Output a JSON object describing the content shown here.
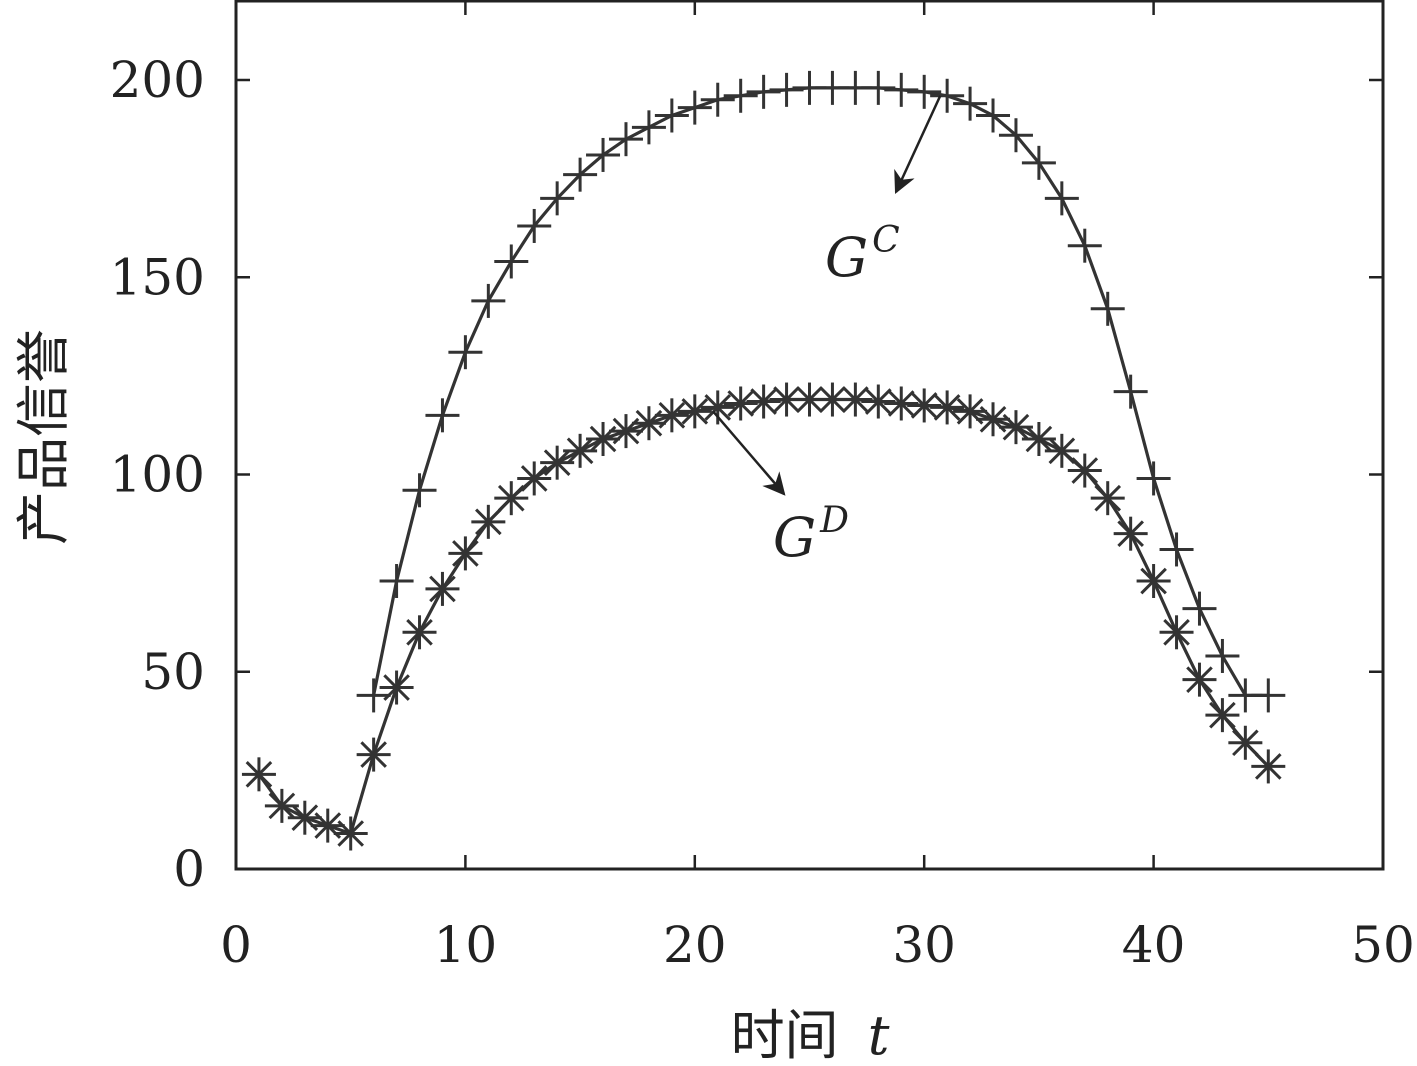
{
  "chart_data": {
    "type": "line",
    "xlabel": "时间",
    "xlabel_var": "t",
    "ylabel": "产品信誉",
    "xlim": [
      0,
      50
    ],
    "ylim": [
      0,
      200
    ],
    "x_ticks": [
      "0",
      "10",
      "20",
      "30",
      "40",
      "50"
    ],
    "y_ticks": [
      "0",
      "50",
      "100",
      "150",
      "200"
    ],
    "grid": false,
    "series": [
      {
        "name": "G^C",
        "marker": "plus",
        "color": "#333333",
        "x": [
          6,
          7,
          8,
          9,
          10,
          11,
          12,
          13,
          14,
          15,
          16,
          17,
          18,
          19,
          20,
          21,
          22,
          23,
          24,
          25,
          26,
          27,
          28,
          29,
          30,
          31,
          32,
          33,
          34,
          35,
          36,
          37,
          38,
          39,
          40,
          41,
          42,
          43,
          44,
          45
        ],
        "y": [
          44,
          73,
          96,
          115,
          131,
          144,
          154,
          163,
          170,
          176,
          181,
          185,
          188,
          191,
          193,
          195,
          196,
          197,
          197.5,
          198,
          198,
          198,
          198,
          197.5,
          197,
          196,
          194,
          191,
          186,
          179,
          170,
          158,
          142,
          121,
          99,
          81,
          66,
          54,
          44,
          44
        ]
      },
      {
        "name": "G^D",
        "marker": "asterisk",
        "color": "#333333",
        "x": [
          1,
          2,
          3,
          4,
          5,
          6,
          7,
          8,
          9,
          10,
          11,
          12,
          13,
          14,
          15,
          16,
          17,
          18,
          19,
          20,
          21,
          22,
          23,
          24,
          25,
          26,
          27,
          28,
          29,
          30,
          31,
          32,
          33,
          34,
          35,
          36,
          37,
          38,
          39,
          40,
          41,
          42,
          43,
          44,
          45
        ],
        "y": [
          24,
          16,
          13,
          11,
          9,
          29,
          46,
          60,
          71,
          80,
          88,
          94,
          99,
          103,
          106,
          109,
          111,
          113,
          115,
          116,
          117,
          118,
          118.5,
          119,
          119,
          119,
          119,
          118.5,
          118,
          117.5,
          117,
          116,
          114,
          112,
          109,
          106,
          101,
          94,
          85,
          73,
          60,
          48,
          39,
          32,
          26
        ]
      }
    ],
    "annotations": [
      {
        "label": "G",
        "sup": "C",
        "points_to_series": "G^C"
      },
      {
        "label": "G",
        "sup": "D",
        "points_to_series": "G^D"
      }
    ]
  }
}
